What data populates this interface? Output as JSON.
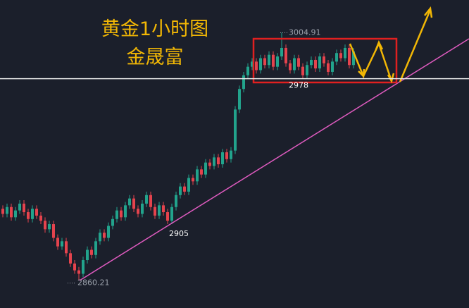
{
  "chart_data": {
    "type": "candlestick",
    "title": "黄金1小时图",
    "subtitle": "金晟富",
    "up_color": "#22a38c",
    "down_color": "#e5434d",
    "ylim": [
      2844,
      3024
    ],
    "open": [
      2902,
      2899,
      2903,
      2897,
      2901,
      2905,
      2900,
      2896,
      2902,
      2898,
      2895,
      2890,
      2893,
      2885,
      2880,
      2883,
      2876,
      2870,
      2866,
      2864,
      2872,
      2878,
      2875,
      2883,
      2888,
      2885,
      2892,
      2896,
      2901,
      2897,
      2904,
      2908,
      2902,
      2899,
      2905,
      2910,
      2903,
      2898,
      2904,
      2900,
      2895,
      2903,
      2910,
      2915,
      2912,
      2920,
      2918,
      2925,
      2922,
      2929,
      2927,
      2932,
      2928,
      2935,
      2931,
      2936,
      2960,
      2972,
      2980,
      2985,
      2988,
      2983,
      2990,
      2986,
      2992,
      2985,
      2991,
      2996,
      2987,
      2983,
      2990,
      2985,
      2980,
      2986,
      2989,
      2984,
      2991,
      2987,
      2982,
      2988,
      2993,
      2990,
      2996,
      2986
    ],
    "high": [
      2904,
      2905,
      2905,
      2903,
      2907,
      2907,
      2902,
      2904,
      2904,
      2900,
      2897,
      2895,
      2895,
      2887,
      2885,
      2885,
      2878,
      2872,
      2868,
      2874,
      2880,
      2880,
      2885,
      2890,
      2890,
      2894,
      2898,
      2903,
      2903,
      2906,
      2910,
      2910,
      2904,
      2907,
      2912,
      2912,
      2905,
      2906,
      2906,
      2902,
      2905,
      2912,
      2917,
      2917,
      2922,
      2922,
      2927,
      2927,
      2931,
      2931,
      2934,
      2934,
      2937,
      2937,
      2938,
      2962,
      2974,
      2982,
      2987,
      2990,
      2990,
      2992,
      2992,
      2994,
      2994,
      2993,
      3004.91,
      2998,
      2989,
      2992,
      2992,
      2987,
      2988,
      2991,
      2991,
      2993,
      2993,
      2989,
      2990,
      2995,
      2995,
      2998,
      2998,
      2996
    ],
    "low": [
      2897,
      2897,
      2895,
      2895,
      2899,
      2898,
      2894,
      2894,
      2896,
      2893,
      2888,
      2888,
      2883,
      2878,
      2878,
      2874,
      2868,
      2864,
      2860.21,
      2862,
      2870,
      2873,
      2873,
      2881,
      2883,
      2883,
      2890,
      2894,
      2895,
      2895,
      2902,
      2900,
      2897,
      2897,
      2903,
      2901,
      2896,
      2896,
      2898,
      2893,
      2893,
      2901,
      2908,
      2910,
      2910,
      2916,
      2916,
      2920,
      2920,
      2925,
      2925,
      2926,
      2926,
      2929,
      2929,
      2934,
      2958,
      2970,
      2978,
      2983,
      2981,
      2981,
      2984,
      2984,
      2983,
      2983,
      2989,
      2985,
      2981,
      2981,
      2983,
      2978,
      2978,
      2984,
      2982,
      2982,
      2985,
      2980,
      2980,
      2986,
      2988,
      2988,
      2984,
      2984
    ],
    "close": [
      2899,
      2903,
      2897,
      2901,
      2905,
      2900,
      2896,
      2902,
      2898,
      2895,
      2890,
      2893,
      2885,
      2880,
      2883,
      2876,
      2870,
      2866,
      2864,
      2872,
      2878,
      2875,
      2883,
      2888,
      2885,
      2892,
      2896,
      2901,
      2897,
      2904,
      2908,
      2902,
      2899,
      2905,
      2910,
      2903,
      2898,
      2904,
      2900,
      2895,
      2903,
      2910,
      2915,
      2912,
      2920,
      2918,
      2925,
      2922,
      2929,
      2927,
      2932,
      2928,
      2935,
      2931,
      2936,
      2960,
      2972,
      2980,
      2985,
      2988,
      2983,
      2990,
      2986,
      2992,
      2985,
      2991,
      2996,
      2987,
      2983,
      2990,
      2985,
      2980,
      2986,
      2989,
      2984,
      2991,
      2987,
      2982,
      2988,
      2993,
      2990,
      2996,
      2986,
      2994
    ],
    "levels": [
      3004.91,
      2978,
      2905,
      2860.21
    ]
  }
}
